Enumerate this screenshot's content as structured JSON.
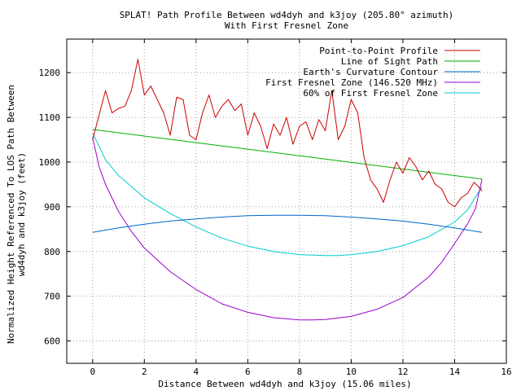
{
  "chart_data": {
    "type": "line",
    "title": "SPLAT! Path Profile Between wd4dyh and k3joy (205.80° azimuth)",
    "subtitle": "With First Fresnel Zone",
    "xlabel": "Distance Between wd4dyh and k3joy (15.06 miles)",
    "ylabel_line1": "Normalized Height Referenced To LOS Path Between",
    "ylabel_line2": "wd4dyh and k3joy (feet)",
    "xlim": [
      -1,
      16
    ],
    "ylim": [
      550,
      1275
    ],
    "xticks": [
      "0",
      "2",
      "4",
      "6",
      "8",
      "10",
      "12",
      "14",
      "16"
    ],
    "xtick_values": [
      0,
      2,
      4,
      6,
      8,
      10,
      12,
      14,
      16
    ],
    "yticks": [
      "600",
      "700",
      "800",
      "900",
      "1000",
      "1100",
      "1200"
    ],
    "ytick_values": [
      600,
      700,
      800,
      900,
      1000,
      1100,
      1200
    ],
    "grid": true,
    "legend_position": "top-right",
    "series": [
      {
        "name": "Point-to-Point Profile",
        "color": "#cc0000",
        "x": [
          0,
          0.25,
          0.5,
          0.75,
          1.0,
          1.25,
          1.5,
          1.75,
          2.0,
          2.25,
          2.5,
          2.75,
          3.0,
          3.25,
          3.5,
          3.75,
          4.0,
          4.25,
          4.5,
          4.75,
          5.0,
          5.25,
          5.5,
          5.75,
          6.0,
          6.25,
          6.5,
          6.75,
          7.0,
          7.25,
          7.5,
          7.75,
          8.0,
          8.25,
          8.5,
          8.75,
          9.0,
          9.25,
          9.5,
          9.75,
          10.0,
          10.25,
          10.5,
          10.75,
          11.0,
          11.25,
          11.5,
          11.75,
          12.0,
          12.25,
          12.5,
          12.75,
          13.0,
          13.25,
          13.5,
          13.75,
          14.0,
          14.25,
          14.5,
          14.75,
          15.0,
          15.06
        ],
        "y": [
          1050,
          1105,
          1160,
          1110,
          1120,
          1125,
          1160,
          1230,
          1150,
          1170,
          1140,
          1110,
          1060,
          1145,
          1140,
          1060,
          1050,
          1110,
          1150,
          1100,
          1125,
          1140,
          1115,
          1130,
          1060,
          1110,
          1080,
          1030,
          1085,
          1060,
          1100,
          1040,
          1080,
          1090,
          1050,
          1095,
          1070,
          1160,
          1050,
          1080,
          1140,
          1110,
          1010,
          960,
          940,
          910,
          960,
          1000,
          975,
          1010,
          990,
          960,
          980,
          950,
          940,
          910,
          900,
          920,
          930,
          955,
          940,
          935
        ]
      },
      {
        "name": "Line of Sight Path",
        "color": "#00b000",
        "x": [
          0,
          15.06
        ],
        "y": [
          1073,
          962
        ]
      },
      {
        "name": "Earth's Curvature Contour",
        "color": "#0066cc",
        "x": [
          0,
          1,
          2,
          3,
          4,
          5,
          6,
          7,
          7.53,
          8,
          9,
          10,
          11,
          12,
          13,
          14,
          15.06
        ],
        "y": [
          843,
          853,
          861,
          868,
          873,
          877,
          880,
          881,
          881,
          881,
          880,
          877,
          873,
          868,
          861,
          853,
          843
        ]
      },
      {
        "name": "First Fresnel Zone (146.520 MHz)",
        "color": "#9900cc",
        "x": [
          0,
          0.25,
          0.5,
          1,
          1.5,
          2,
          3,
          4,
          5,
          6,
          7,
          8,
          8.5,
          9,
          10,
          11,
          12,
          13,
          13.5,
          14,
          14.5,
          14.8,
          15.06
        ],
        "y": [
          1055,
          990,
          950,
          890,
          845,
          808,
          755,
          715,
          683,
          664,
          652,
          647,
          647,
          648,
          655,
          671,
          697,
          743,
          776,
          818,
          862,
          895,
          962
        ]
      },
      {
        "name": "60% of First Fresnel Zone",
        "color": "#00cccc",
        "x": [
          0,
          0.5,
          1,
          2,
          3,
          4,
          5,
          6,
          7,
          8,
          9,
          9.5,
          10,
          11,
          12,
          13,
          14,
          14.5,
          15.06
        ],
        "y": [
          1065,
          1005,
          970,
          920,
          885,
          855,
          830,
          812,
          800,
          793,
          791,
          791,
          793,
          800,
          813,
          833,
          866,
          893,
          945
        ]
      }
    ]
  }
}
